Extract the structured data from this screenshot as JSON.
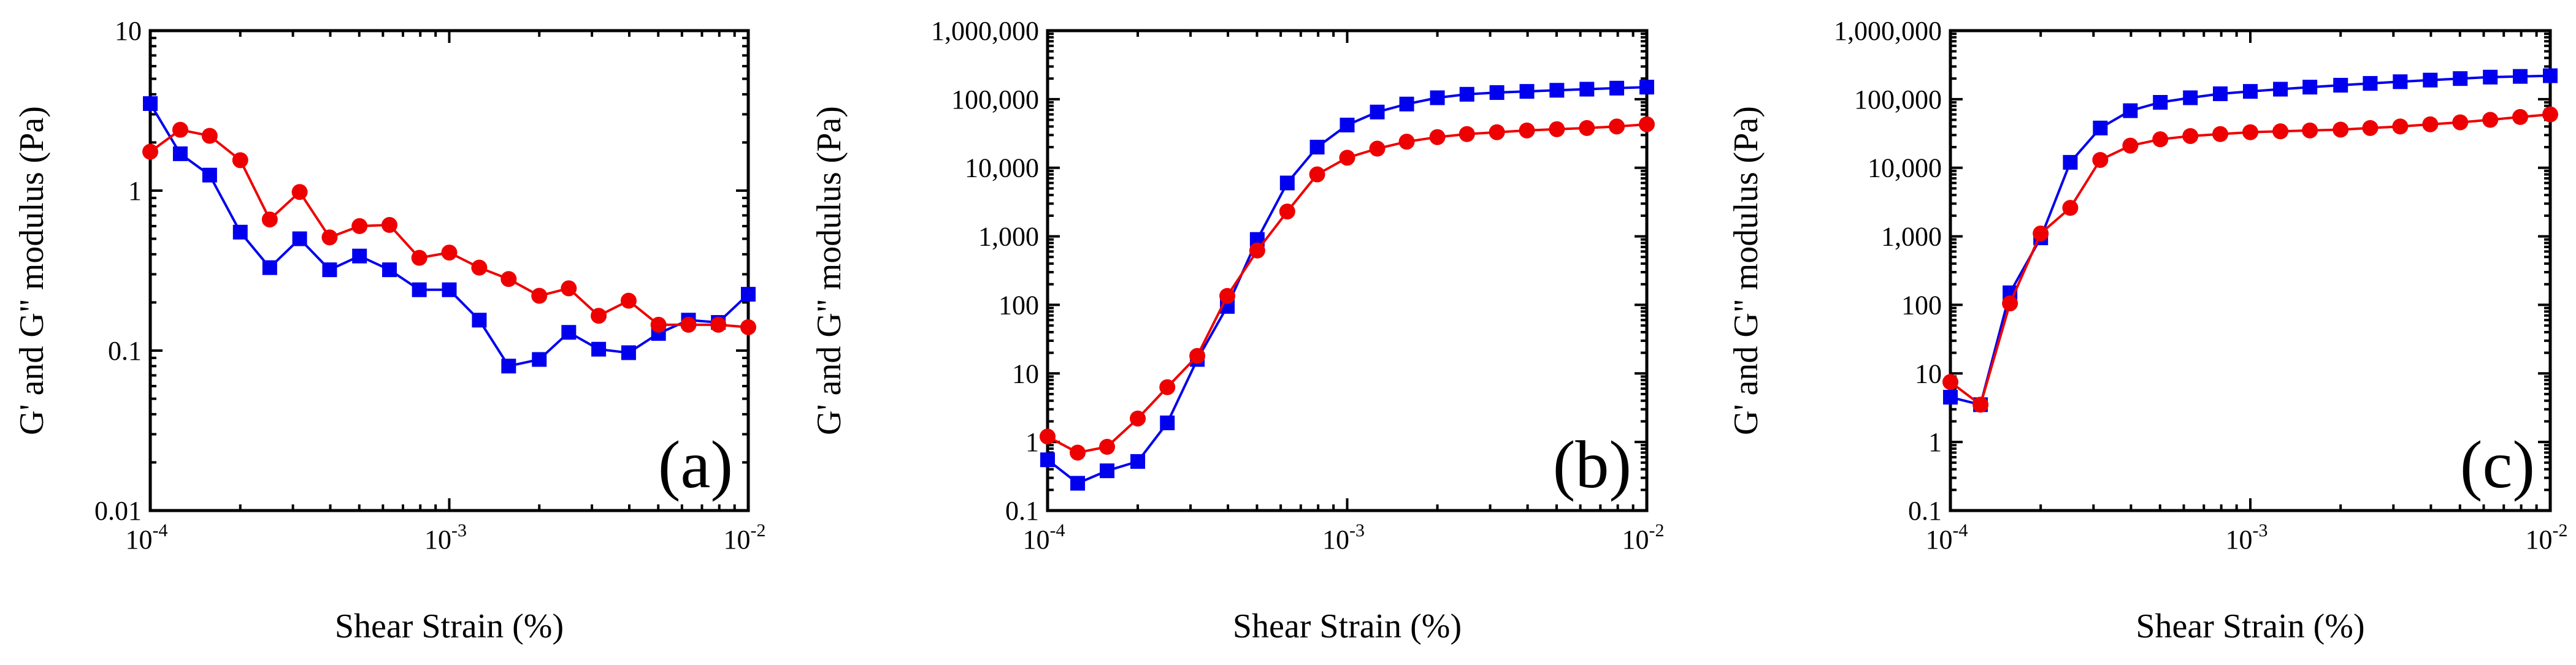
{
  "chart_data": [
    {
      "type": "line",
      "panel_label": "(a)",
      "xlabel": "Shear Strain (%)",
      "ylabel": "G' and G\" modulus (Pa)",
      "x_scale": "log",
      "y_scale": "log",
      "xlim": [
        0.0001,
        0.01
      ],
      "ylim": [
        0.01,
        10
      ],
      "x_ticks": [
        0.0001,
        0.001,
        0.01
      ],
      "x_tick_labels": [
        [
          "10",
          "-4"
        ],
        [
          "10",
          "-3"
        ],
        [
          "10",
          "-2"
        ]
      ],
      "y_ticks": [
        0.01,
        0.1,
        1,
        10
      ],
      "y_tick_labels": [
        "0.01",
        "0.1",
        "1",
        "10"
      ],
      "grid": false,
      "series": [
        {
          "color": "#0000ee",
          "marker": "square",
          "x": [
            0.0001,
            0.000126,
            0.000158,
            0.0002,
            0.000251,
            0.000316,
            0.000398,
            0.000501,
            0.000631,
            0.000794,
            0.001,
            0.00126,
            0.00158,
            0.002,
            0.00251,
            0.00316,
            0.00398,
            0.00501,
            0.00631,
            0.00794,
            0.01
          ],
          "y": [
            3.5,
            1.7,
            1.25,
            0.55,
            0.33,
            0.5,
            0.32,
            0.39,
            0.32,
            0.24,
            0.24,
            0.155,
            0.08,
            0.088,
            0.13,
            0.102,
            0.097,
            0.128,
            0.155,
            0.15,
            0.225
          ]
        },
        {
          "color": "#ee0000",
          "marker": "circle",
          "x": [
            0.0001,
            0.000126,
            0.000158,
            0.0002,
            0.000251,
            0.000316,
            0.000398,
            0.000501,
            0.000631,
            0.000794,
            0.001,
            0.00126,
            0.00158,
            0.002,
            0.00251,
            0.00316,
            0.00398,
            0.00501,
            0.00631,
            0.00794,
            0.01
          ],
          "y": [
            1.75,
            2.4,
            2.2,
            1.55,
            0.66,
            0.98,
            0.51,
            0.6,
            0.61,
            0.38,
            0.41,
            0.33,
            0.28,
            0.22,
            0.245,
            0.165,
            0.205,
            0.145,
            0.145,
            0.145,
            0.14
          ]
        }
      ]
    },
    {
      "type": "line",
      "panel_label": "(b)",
      "xlabel": "Shear Strain (%)",
      "ylabel": "G' and G\" modulus (Pa)",
      "x_scale": "log",
      "y_scale": "log",
      "xlim": [
        0.0001,
        0.01
      ],
      "ylim": [
        0.1,
        1000000
      ],
      "x_ticks": [
        0.0001,
        0.001,
        0.01
      ],
      "x_tick_labels": [
        [
          "10",
          "-4"
        ],
        [
          "10",
          "-3"
        ],
        [
          "10",
          "-2"
        ]
      ],
      "y_ticks": [
        0.1,
        1,
        10,
        100,
        1000,
        10000,
        100000,
        1000000
      ],
      "y_tick_labels": [
        "0.1",
        "1",
        "10",
        "100",
        "1,000",
        "10,000",
        "100,000",
        "1,000,000"
      ],
      "grid": false,
      "series": [
        {
          "color": "#0000ee",
          "marker": "square",
          "x": [
            0.0001,
            0.000126,
            0.000158,
            0.0002,
            0.000251,
            0.000316,
            0.000398,
            0.000501,
            0.000631,
            0.000794,
            0.001,
            0.00126,
            0.00158,
            0.002,
            0.00251,
            0.00316,
            0.00398,
            0.00501,
            0.00631,
            0.00794,
            0.01
          ],
          "y": [
            0.55,
            0.25,
            0.38,
            0.52,
            1.9,
            16,
            95,
            900,
            6000,
            20000,
            42000,
            65000,
            85000,
            105000,
            118000,
            125000,
            130000,
            135000,
            140000,
            145000,
            150000
          ]
        },
        {
          "color": "#ee0000",
          "marker": "circle",
          "x": [
            0.0001,
            0.000126,
            0.000158,
            0.0002,
            0.000251,
            0.000316,
            0.000398,
            0.000501,
            0.000631,
            0.000794,
            0.001,
            0.00126,
            0.00158,
            0.002,
            0.00251,
            0.00316,
            0.00398,
            0.00501,
            0.00631,
            0.00794,
            0.01
          ],
          "y": [
            1.2,
            0.7,
            0.85,
            2.2,
            6.3,
            18,
            135,
            620,
            2300,
            8000,
            14000,
            19000,
            24000,
            28000,
            31000,
            33000,
            35000,
            36500,
            38000,
            40000,
            43000
          ]
        }
      ]
    },
    {
      "type": "line",
      "panel_label": "(c)",
      "xlabel": "Shear Strain (%)",
      "ylabel": "G' and G\" modulus (Pa)",
      "x_scale": "log",
      "y_scale": "log",
      "xlim": [
        0.0001,
        0.01
      ],
      "ylim": [
        0.1,
        1000000
      ],
      "x_ticks": [
        0.0001,
        0.001,
        0.01
      ],
      "x_tick_labels": [
        [
          "10",
          "-4"
        ],
        [
          "10",
          "-3"
        ],
        [
          "10",
          "-2"
        ]
      ],
      "y_ticks": [
        0.1,
        1,
        10,
        100,
        1000,
        10000,
        100000,
        1000000
      ],
      "y_tick_labels": [
        "0.1",
        "1",
        "10",
        "100",
        "1,000",
        "10,000",
        "100,000",
        "1,000,000"
      ],
      "grid": false,
      "series": [
        {
          "color": "#0000ee",
          "marker": "square",
          "x": [
            0.0001,
            0.000126,
            0.000158,
            0.0002,
            0.000251,
            0.000316,
            0.000398,
            0.000501,
            0.000631,
            0.000794,
            0.001,
            0.00126,
            0.00158,
            0.002,
            0.00251,
            0.00316,
            0.00398,
            0.00501,
            0.00631,
            0.00794,
            0.01
          ],
          "y": [
            4.5,
            3.5,
            150,
            950,
            12000,
            38000,
            68000,
            90000,
            105000,
            120000,
            130000,
            140000,
            150000,
            160000,
            170000,
            180000,
            190000,
            200000,
            210000,
            215000,
            220000
          ]
        },
        {
          "color": "#ee0000",
          "marker": "circle",
          "x": [
            0.0001,
            0.000126,
            0.000158,
            0.0002,
            0.000251,
            0.000316,
            0.000398,
            0.000501,
            0.000631,
            0.000794,
            0.001,
            0.00126,
            0.00158,
            0.002,
            0.00251,
            0.00316,
            0.00398,
            0.00501,
            0.00631,
            0.00794,
            0.01
          ],
          "y": [
            7.5,
            3.5,
            105,
            1100,
            2600,
            13000,
            21000,
            26000,
            29000,
            31000,
            33000,
            34000,
            35000,
            36000,
            38000,
            40000,
            43000,
            46000,
            50000,
            55000,
            60000
          ]
        }
      ]
    }
  ]
}
